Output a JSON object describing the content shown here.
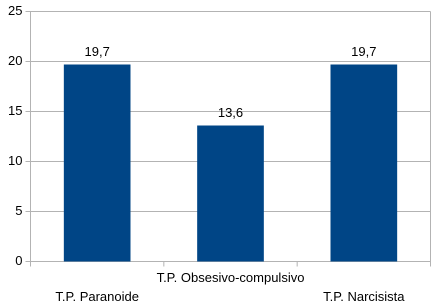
{
  "chart_data": {
    "type": "bar",
    "categories": [
      "T.P. Paranoide",
      "T.P. Obsesivo-compulsivo",
      "T.P. Narcisista"
    ],
    "values": [
      19.7,
      13.6,
      19.7
    ],
    "value_labels": [
      "19,7",
      "13,6",
      "19,7"
    ],
    "color": "#004586",
    "ylim": [
      0,
      25
    ],
    "yticks": [
      0,
      5,
      10,
      15,
      20,
      25
    ],
    "grid": true
  }
}
